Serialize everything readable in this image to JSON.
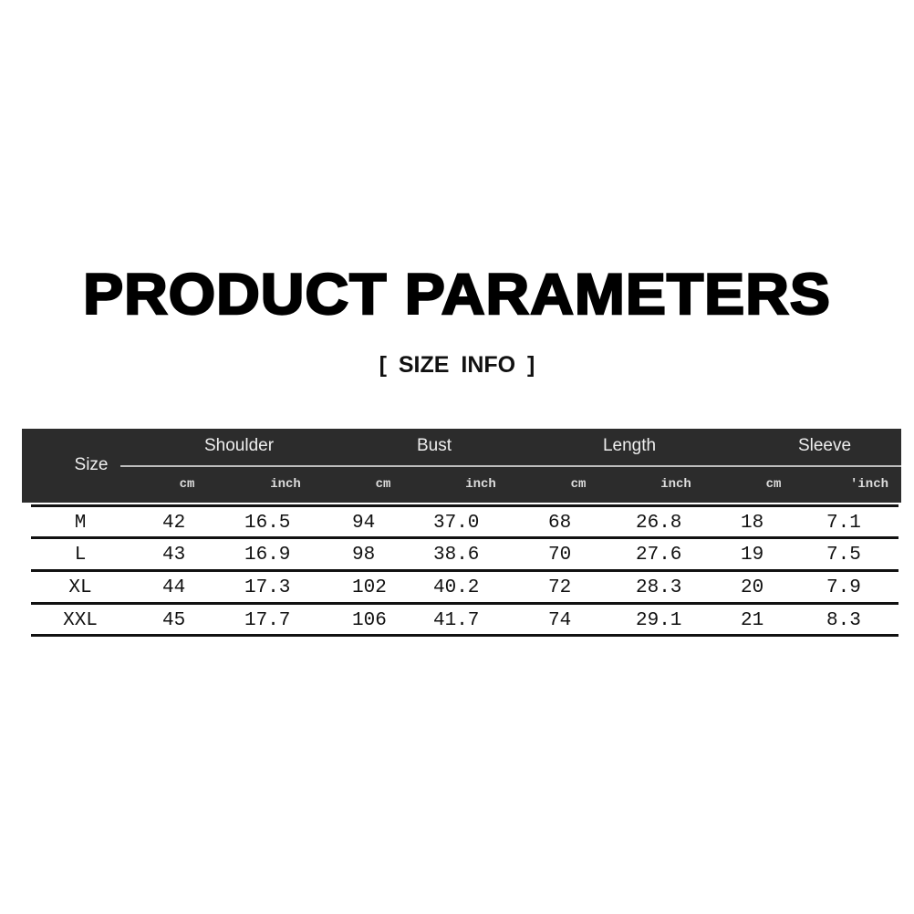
{
  "title": "PRODUCT PARAMETERS",
  "subtitle": "[ SIZE  INFO ]",
  "table": {
    "size_header": "Size",
    "groups": [
      "Shoulder",
      "Bust",
      "Length",
      "Sleeve"
    ],
    "units": [
      "cm",
      "inch",
      "cm",
      "inch",
      "cm",
      "inch",
      "cm",
      "'inch"
    ],
    "rows": [
      {
        "size": "M",
        "values": [
          "42",
          "16.5",
          "94",
          "37.0",
          "68",
          "26.8",
          "18",
          "7.1"
        ]
      },
      {
        "size": "L",
        "values": [
          "43",
          "16.9",
          "98",
          "38.6",
          "70",
          "27.6",
          "19",
          "7.5"
        ]
      },
      {
        "size": "XL",
        "values": [
          "44",
          "17.3",
          "102",
          "40.2",
          "72",
          "28.3",
          "20",
          "7.9"
        ]
      },
      {
        "size": "XXL",
        "values": [
          "45",
          "17.7",
          "106",
          "41.7",
          "74",
          "29.1",
          "21",
          "8.3"
        ]
      }
    ]
  },
  "colors": {
    "header_bg": "#2c2c2c",
    "header_text": "#eeeeee",
    "text": "#111111"
  }
}
